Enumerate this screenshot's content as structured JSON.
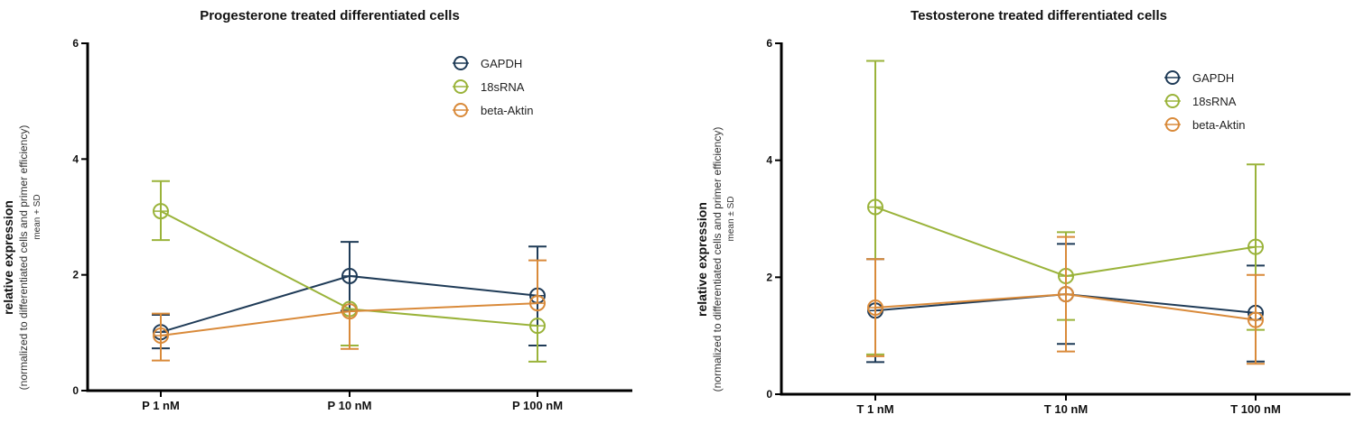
{
  "chart_data": [
    {
      "type": "line",
      "title": "Progesterone treated differentiated cells",
      "ylabel": "relative expression",
      "ylabel_sub": "(normalized to differentiated cells and primer efficiency)",
      "ylabel_stat": "mean + SD",
      "xlabel": "",
      "categories": [
        "P 1 nM",
        "P 10 nM",
        "P 100 nM"
      ],
      "ylim": [
        0,
        6
      ],
      "yticks": [
        0,
        2,
        4,
        6
      ],
      "grid": false,
      "legend_position": "top-right",
      "series": [
        {
          "name": "GAPDH",
          "color": "#1f3b57",
          "values": [
            1.01,
            1.98,
            1.64
          ],
          "err_low": [
            0.73,
            1.38,
            0.78
          ],
          "err_high": [
            1.31,
            2.57,
            2.49
          ]
        },
        {
          "name": "18sRNA",
          "color": "#9ab33a",
          "values": [
            3.1,
            1.41,
            1.12
          ],
          "err_low": [
            2.6,
            0.78,
            0.5
          ],
          "err_high": [
            3.62,
            1.41,
            1.12
          ]
        },
        {
          "name": "beta-Aktin",
          "color": "#d98a3a",
          "values": [
            0.95,
            1.37,
            1.51
          ],
          "err_low": [
            0.52,
            0.72,
            1.51
          ],
          "err_high": [
            1.33,
            1.37,
            2.25
          ]
        }
      ]
    },
    {
      "type": "line",
      "title": "Testosterone treated differentiated cells",
      "ylabel": "relative expression",
      "ylabel_sub": "(normalized to differentiated cells and primer efficiency)",
      "ylabel_stat": "mean ± SD",
      "xlabel": "",
      "categories": [
        "T 1 nM",
        "T 10 nM",
        "T 100 nM"
      ],
      "ylim": [
        0,
        6
      ],
      "yticks": [
        0,
        2,
        4,
        6
      ],
      "grid": false,
      "legend_position": "top-right",
      "series": [
        {
          "name": "GAPDH",
          "color": "#1f3b57",
          "values": [
            1.43,
            1.71,
            1.39
          ],
          "err_low": [
            0.55,
            0.86,
            0.56
          ],
          "err_high": [
            2.31,
            2.57,
            2.2
          ]
        },
        {
          "name": "18sRNA",
          "color": "#9ab33a",
          "values": [
            3.2,
            2.02,
            2.52
          ],
          "err_low": [
            0.68,
            1.27,
            1.1
          ],
          "err_high": [
            5.7,
            2.77,
            3.93
          ]
        },
        {
          "name": "beta-Aktin",
          "color": "#d98a3a",
          "values": [
            1.48,
            1.71,
            1.27
          ],
          "err_low": [
            0.65,
            0.73,
            0.52
          ],
          "err_high": [
            2.31,
            2.69,
            2.04
          ]
        }
      ]
    }
  ]
}
